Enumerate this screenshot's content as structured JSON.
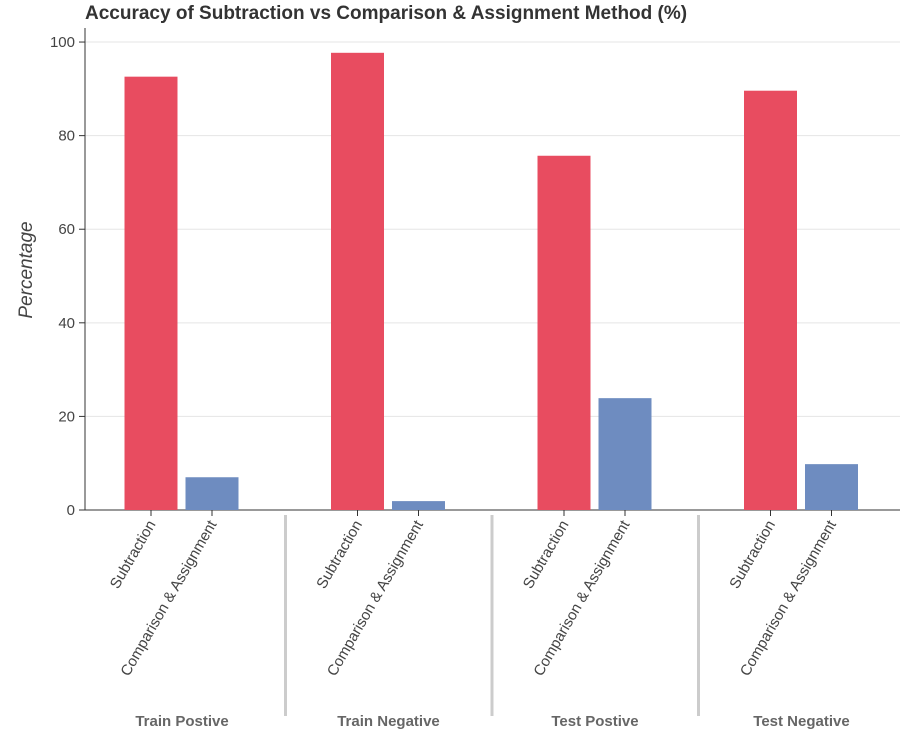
{
  "chart_data": {
    "type": "bar",
    "title": "Accuracy of Subtraction vs Comparison & Assignment Method (%)",
    "ylabel": "Percentage",
    "categories": [
      "Train Postive",
      "Train Negative",
      "Test Postive",
      "Test Negative"
    ],
    "series": [
      {
        "name": "Subtraction",
        "color": "#e84c60",
        "values": [
          92.6,
          97.7,
          75.7,
          89.6
        ]
      },
      {
        "name": "Comparison & Assignment",
        "color": "#6e8cc0",
        "values": [
          7.0,
          1.9,
          23.9,
          9.8
        ]
      }
    ],
    "ylim": [
      0,
      103
    ],
    "yticks": [
      0,
      20,
      40,
      60,
      80,
      100
    ],
    "grid": true
  }
}
